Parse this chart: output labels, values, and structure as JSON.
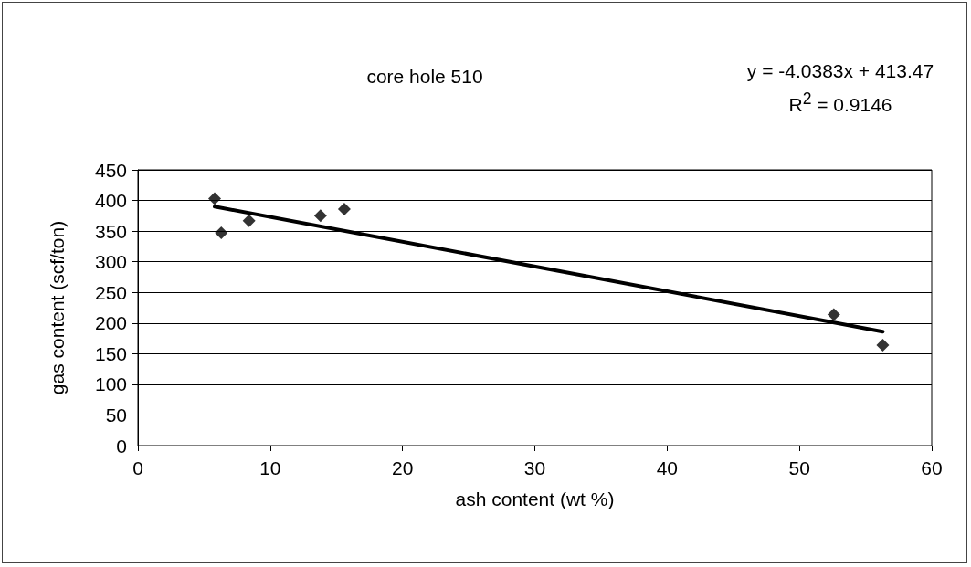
{
  "chart_data": {
    "type": "scatter",
    "title": "core hole 510",
    "xlabel": "ash content (wt %)",
    "ylabel": "gas content (scf/ton)",
    "annotations": [
      "y = -4.0383x + 413.47",
      "R$^{2}$ = 0.9146"
    ],
    "series": [
      {
        "color": "#000000",
        "marker": "diamond",
        "x": [
          5.8,
          6.3,
          8.4,
          13.8,
          15.6,
          52.6,
          56.3
        ],
        "values": [
          403,
          347,
          367,
          375,
          386,
          214,
          164
        ]
      },
      {
        "type": "line",
        "color": "#000000",
        "marker": "none",
        "line_style": "solid",
        "x": [
          5.8,
          56.3
        ],
        "values": [
          390,
          186
        ]
      }
    ],
    "xlim": [
      0,
      60
    ],
    "xticks": [
      0,
      10,
      20,
      30,
      40,
      50,
      60
    ],
    "ylim": [
      0,
      450
    ],
    "yticks": [
      0,
      50,
      100,
      150,
      200,
      250,
      300,
      350,
      400,
      450
    ],
    "grid": "y"
  }
}
